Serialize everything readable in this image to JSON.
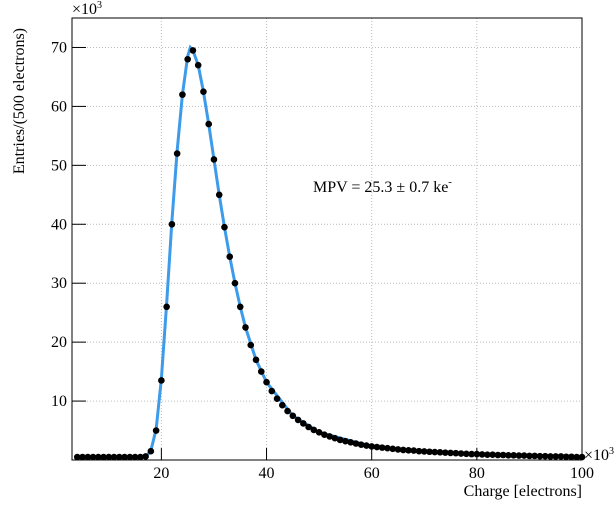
{
  "chart_data": {
    "type": "scatter",
    "xlabel": "Charge [electrons]",
    "ylabel": "Entries/(500 electrons)",
    "x_multiplier": {
      "base": "×10",
      "exp": "3"
    },
    "y_multiplier": {
      "base": "×10",
      "exp": "3"
    },
    "annotation": {
      "text": "MPV =  25.3 ± 0.7 ke",
      "sup": "-"
    },
    "xlim": [
      3,
      100
    ],
    "ylim": [
      0,
      75
    ],
    "xticks": [
      20,
      40,
      60,
      80,
      100
    ],
    "yticks": [
      10,
      20,
      30,
      40,
      50,
      60,
      70
    ],
    "grid": true,
    "series": [
      {
        "color": "#000000",
        "x": [
          4,
          5,
          6,
          7,
          8,
          9,
          10,
          11,
          12,
          13,
          14,
          15,
          16,
          17,
          18,
          19,
          20,
          21,
          22,
          23,
          24,
          25,
          26,
          27,
          28,
          29,
          30,
          31,
          32,
          33,
          34,
          35,
          36,
          37,
          38,
          39,
          40,
          41,
          42,
          43,
          44,
          45,
          46,
          47,
          48,
          49,
          50,
          51,
          52,
          53,
          54,
          55,
          56,
          57,
          58,
          59,
          60,
          61,
          62,
          63,
          64,
          65,
          66,
          67,
          68,
          69,
          70,
          71,
          72,
          73,
          74,
          75,
          76,
          77,
          78,
          79,
          80,
          81,
          82,
          83,
          84,
          85,
          86,
          87,
          88,
          89,
          90,
          91,
          92,
          93,
          94,
          95,
          96,
          97,
          98,
          99,
          100
        ],
        "values": [
          0.5,
          0.5,
          0.5,
          0.5,
          0.5,
          0.5,
          0.5,
          0.5,
          0.5,
          0.5,
          0.5,
          0.5,
          0.5,
          0.6,
          1.5,
          5,
          13.5,
          26,
          40,
          52,
          62,
          68,
          69.5,
          67,
          62.5,
          57,
          51,
          45,
          39.5,
          34.5,
          30,
          26,
          22.5,
          19.5,
          17,
          15,
          13.2,
          11.7,
          10.4,
          9.3,
          8.3,
          7.5,
          6.8,
          6.2,
          5.6,
          5.1,
          4.7,
          4.3,
          4.0,
          3.7,
          3.4,
          3.2,
          3.0,
          2.8,
          2.6,
          2.45,
          2.3,
          2.2,
          2.1,
          2.0,
          1.9,
          1.8,
          1.7,
          1.65,
          1.6,
          1.5,
          1.45,
          1.4,
          1.35,
          1.3,
          1.25,
          1.2,
          1.15,
          1.1,
          1.05,
          1.0,
          1.0,
          0.95,
          0.9,
          0.9,
          0.85,
          0.85,
          0.8,
          0.8,
          0.75,
          0.75,
          0.7,
          0.7,
          0.65,
          0.65,
          0.6,
          0.6,
          0.6,
          0.55,
          0.55,
          0.5,
          0.5
        ]
      },
      {
        "color": "#3d9be9",
        "x": [
          17,
          18,
          19,
          20,
          21,
          22,
          23,
          24,
          25,
          25.5,
          26,
          27,
          28,
          29,
          30,
          31,
          32,
          33,
          34,
          35,
          36,
          38,
          40,
          45,
          50,
          60,
          70,
          80,
          90,
          100
        ],
        "values": [
          0.5,
          1.6,
          5.2,
          13.8,
          26.5,
          40.5,
          52.5,
          62,
          68.5,
          70,
          69.5,
          67,
          62.5,
          57,
          51,
          45,
          39.5,
          34.5,
          30,
          26,
          22.5,
          17,
          13.2,
          7.5,
          4.7,
          2.3,
          1.45,
          1.0,
          0.7,
          0.5
        ]
      }
    ]
  }
}
